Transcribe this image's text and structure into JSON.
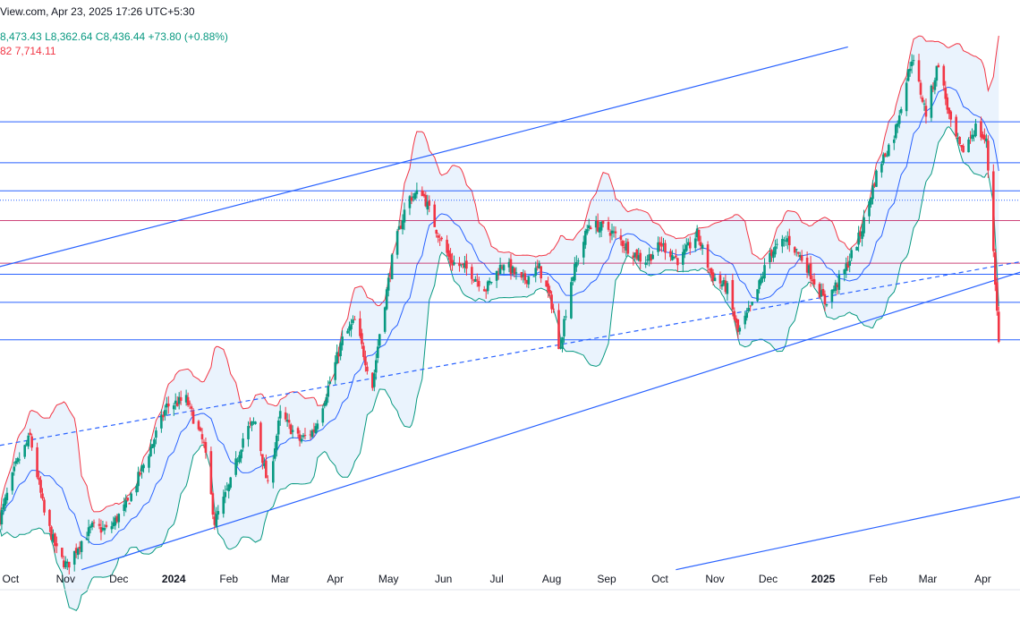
{
  "header": {
    "source_time": "View.com, Apr 23, 2025 17:26 UTC+5:30",
    "ohlc_high": "8,473.43",
    "ohlc_low": "L8,362.64",
    "ohlc_close": "C8,436.44",
    "ohlc_change": "+73.80 (+0.88%)",
    "indicator_a": "82",
    "indicator_b": "7,714.11"
  },
  "colors": {
    "up": "#089981",
    "down": "#f23645",
    "middle_band": "#2962ff",
    "upper_band": "#f23645",
    "lower_band": "#089981",
    "band_fill": "#eaf3fd",
    "level_blue": "#2962ff",
    "level_red": "#c2185b",
    "trend_line": "#2962ff"
  },
  "chart_data": {
    "type": "candlestick",
    "indicator": "Bollinger Bands",
    "x_axis": {
      "tick_labels": [
        "Oct",
        "Nov",
        "Dec",
        "2024",
        "Feb",
        "Mar",
        "Apr",
        "May",
        "Jun",
        "Jul",
        "Aug",
        "Sep",
        "Oct",
        "Nov",
        "Dec",
        "2025",
        "Feb",
        "Mar",
        "Apr"
      ],
      "bold_labels": [
        "2024",
        "2025"
      ]
    },
    "y_axis": {
      "visible": false,
      "range": [
        6100,
        9400
      ]
    },
    "horizontal_levels": {
      "blue": [
        8800,
        8560,
        8395,
        7905,
        7740,
        7520
      ],
      "red": [
        8220,
        7970
      ],
      "dotted": [
        8340
      ]
    },
    "trend_channel": {
      "upper_line": [
        [
          "2023-09-25",
          7950
        ],
        [
          "2025-01-15",
          9240
        ]
      ],
      "lower_line": [
        [
          "2023-11-10",
          6170
        ],
        [
          "2025-04-23",
          7920
        ]
      ],
      "middle_dashed": [
        [
          "2023-09-25",
          6900
        ],
        [
          "2025-04-23",
          7980
        ]
      ],
      "far_lower_line": [
        [
          "2024-10-10",
          6170
        ],
        [
          "2025-04-23",
          6600
        ]
      ]
    },
    "price_path": [
      [
        "2023-09-25",
        6470
      ],
      [
        "2023-10-04",
        6780
      ],
      [
        "2023-10-12",
        6950
      ],
      [
        "2023-10-20",
        6500
      ],
      [
        "2023-10-28",
        6250
      ],
      [
        "2023-11-02",
        6190
      ],
      [
        "2023-11-08",
        6310
      ],
      [
        "2023-11-16",
        6420
      ],
      [
        "2023-11-25",
        6400
      ],
      [
        "2023-12-06",
        6560
      ],
      [
        "2023-12-18",
        6860
      ],
      [
        "2023-12-28",
        7130
      ],
      [
        "2024-01-08",
        7170
      ],
      [
        "2024-01-18",
        6900
      ],
      [
        "2024-01-24",
        6450
      ],
      [
        "2024-02-02",
        6680
      ],
      [
        "2024-02-10",
        6980
      ],
      [
        "2024-02-16",
        7040
      ],
      [
        "2024-02-23",
        6660
      ],
      [
        "2024-03-01",
        7080
      ],
      [
        "2024-03-12",
        6930
      ],
      [
        "2024-03-20",
        6990
      ],
      [
        "2024-03-28",
        7240
      ],
      [
        "2024-04-05",
        7520
      ],
      [
        "2024-04-12",
        7630
      ],
      [
        "2024-04-22",
        7250
      ],
      [
        "2024-04-26",
        7560
      ],
      [
        "2024-05-04",
        8050
      ],
      [
        "2024-05-12",
        8350
      ],
      [
        "2024-05-20",
        8390
      ],
      [
        "2024-05-28",
        8170
      ],
      [
        "2024-06-05",
        7980
      ],
      [
        "2024-06-15",
        7930
      ],
      [
        "2024-06-25",
        7820
      ],
      [
        "2024-07-05",
        7980
      ],
      [
        "2024-07-15",
        7860
      ],
      [
        "2024-07-25",
        7940
      ],
      [
        "2024-08-02",
        7700
      ],
      [
        "2024-08-05",
        7450
      ],
      [
        "2024-08-12",
        7870
      ],
      [
        "2024-08-22",
        8200
      ],
      [
        "2024-09-02",
        8170
      ],
      [
        "2024-09-12",
        8070
      ],
      [
        "2024-09-22",
        7980
      ],
      [
        "2024-10-02",
        8080
      ],
      [
        "2024-10-12",
        7980
      ],
      [
        "2024-10-22",
        8140
      ],
      [
        "2024-10-30",
        7900
      ],
      [
        "2024-11-08",
        7820
      ],
      [
        "2024-11-14",
        7560
      ],
      [
        "2024-11-22",
        7720
      ],
      [
        "2024-12-02",
        8030
      ],
      [
        "2024-12-12",
        8110
      ],
      [
        "2024-12-22",
        7970
      ],
      [
        "2025-01-02",
        7740
      ],
      [
        "2025-01-12",
        7900
      ],
      [
        "2025-01-22",
        8140
      ],
      [
        "2025-02-01",
        8530
      ],
      [
        "2025-02-10",
        8720
      ],
      [
        "2025-02-20",
        9180
      ],
      [
        "2025-02-28",
        8850
      ],
      [
        "2025-03-07",
        9150
      ],
      [
        "2025-03-14",
        8780
      ],
      [
        "2025-03-20",
        8620
      ],
      [
        "2025-03-28",
        8770
      ],
      [
        "2025-04-03",
        8680
      ],
      [
        "2025-04-07",
        8050
      ],
      [
        "2025-04-10",
        7500
      ]
    ]
  }
}
